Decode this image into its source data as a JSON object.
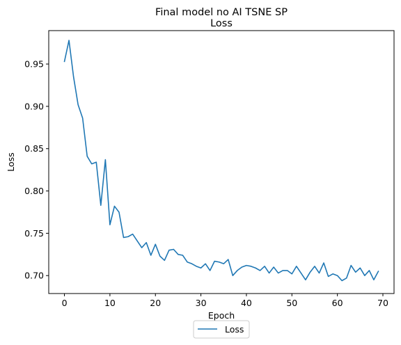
{
  "chart_data": {
    "type": "line",
    "title": "Final model no AI TSNE SP",
    "subtitle": "Loss",
    "xlabel": "Epoch",
    "ylabel": "Loss",
    "xlim": [
      -3.45,
      72.45
    ],
    "ylim": [
      0.6788,
      0.9895
    ],
    "xticks": [
      0,
      10,
      20,
      30,
      40,
      50,
      60,
      70
    ],
    "yticks": [
      0.7,
      0.75,
      0.8,
      0.85,
      0.9,
      0.95
    ],
    "ytick_labels": [
      "0.70",
      "0.75",
      "0.80",
      "0.85",
      "0.90",
      "0.95"
    ],
    "grid": false,
    "legend_placement": "bottom-center",
    "series": [
      {
        "name": "Loss",
        "color": "#1f77b4",
        "x": [
          0,
          1,
          2,
          3,
          4,
          5,
          6,
          7,
          8,
          9,
          10,
          11,
          12,
          13,
          14,
          15,
          16,
          17,
          18,
          19,
          20,
          21,
          22,
          23,
          24,
          25,
          26,
          27,
          28,
          29,
          30,
          31,
          32,
          33,
          34,
          35,
          36,
          37,
          38,
          39,
          40,
          41,
          42,
          43,
          44,
          45,
          46,
          47,
          48,
          49,
          50,
          51,
          52,
          53,
          54,
          55,
          56,
          57,
          58,
          59,
          60,
          61,
          62,
          63,
          64,
          65,
          66,
          67,
          68,
          69
        ],
        "values": [
          0.953,
          0.978,
          0.935,
          0.902,
          0.886,
          0.841,
          0.832,
          0.834,
          0.783,
          0.837,
          0.76,
          0.782,
          0.775,
          0.745,
          0.746,
          0.749,
          0.741,
          0.733,
          0.739,
          0.724,
          0.737,
          0.723,
          0.718,
          0.73,
          0.731,
          0.725,
          0.724,
          0.716,
          0.714,
          0.711,
          0.709,
          0.714,
          0.706,
          0.717,
          0.716,
          0.714,
          0.719,
          0.7,
          0.706,
          0.71,
          0.712,
          0.711,
          0.709,
          0.706,
          0.711,
          0.703,
          0.71,
          0.703,
          0.706,
          0.706,
          0.702,
          0.711,
          0.703,
          0.695,
          0.704,
          0.711,
          0.703,
          0.715,
          0.699,
          0.702,
          0.7,
          0.694,
          0.697,
          0.712,
          0.704,
          0.709,
          0.7,
          0.706,
          0.695,
          0.705
        ]
      }
    ]
  }
}
